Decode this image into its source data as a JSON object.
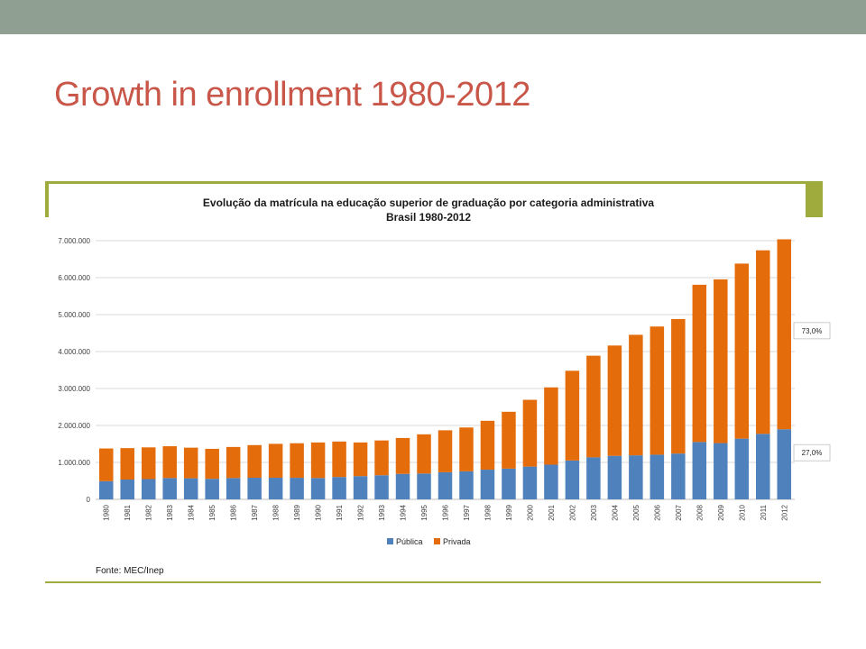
{
  "slide": {
    "title": "Growth in enrollment 1980-2012"
  },
  "colors": {
    "top_band": "#8fa092",
    "title": "#c8574a",
    "frame_accent": "#a0ab3d",
    "publica": "#4f81bd",
    "privada": "#e46c0a"
  },
  "chart_data": {
    "type": "bar",
    "stacked": true,
    "title": "Evolução da matrícula na educação superior de graduação por categoria administrativa",
    "subtitle": "Brasil 1980-2012",
    "xlabel": "",
    "ylabel": "",
    "categories": [
      "1980",
      "1981",
      "1982",
      "1983",
      "1984",
      "1985",
      "1986",
      "1987",
      "1988",
      "1989",
      "1990",
      "1991",
      "1992",
      "1993",
      "1994",
      "1995",
      "1996",
      "1997",
      "1998",
      "1999",
      "2000",
      "2001",
      "2002",
      "2003",
      "2004",
      "2005",
      "2006",
      "2007",
      "2008",
      "2009",
      "2010",
      "2011",
      "2012"
    ],
    "series": [
      {
        "name": "Pública",
        "color": "#4f81bd",
        "values": [
          492000,
          536000,
          549000,
          577000,
          571000,
          556000,
          577000,
          585000,
          585000,
          584000,
          578000,
          605000,
          629000,
          653000,
          690000,
          700000,
          735000,
          759000,
          804000,
          832000,
          887000,
          939000,
          1052000,
          1137000,
          1178000,
          1192000,
          1209000,
          1240000,
          1552000,
          1523000,
          1643000,
          1773000,
          1897000
        ]
      },
      {
        "name": "Privada",
        "color": "#e46c0a",
        "values": [
          885000,
          851000,
          858000,
          861000,
          828000,
          811000,
          841000,
          884000,
          918000,
          935000,
          962000,
          960000,
          911000,
          941000,
          971000,
          1060000,
          1134000,
          1186000,
          1322000,
          1538000,
          1807000,
          2092000,
          2428000,
          2750000,
          2985000,
          3261000,
          3468000,
          3640000,
          4255000,
          4430000,
          4737000,
          4966000,
          5140000
        ]
      }
    ],
    "ylim": [
      0,
      7000000
    ],
    "yticks": [
      0,
      1000000,
      2000000,
      3000000,
      4000000,
      5000000,
      6000000,
      7000000
    ],
    "ytick_labels": [
      "0",
      "1.000.000",
      "2.000.000",
      "3.000.000",
      "4.000.000",
      "5.000.000",
      "6.000.000",
      "7.000.000"
    ],
    "grid": true,
    "legend": "bottom",
    "annotations": [
      {
        "text": "73,0%",
        "series": "Privada",
        "category": "2012"
      },
      {
        "text": "27,0%",
        "series": "Pública",
        "category": "2012"
      }
    ],
    "source": "Fonte: MEC/Inep"
  }
}
